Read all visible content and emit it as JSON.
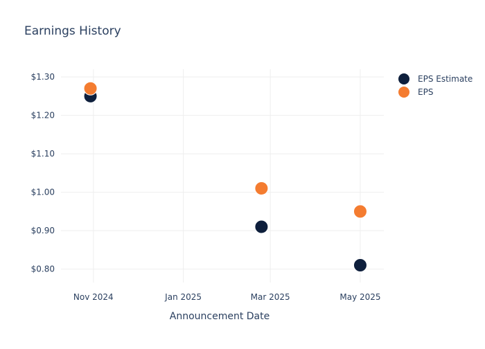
{
  "chart_data": {
    "type": "scatter",
    "title": "Earnings History",
    "xlabel": "Announcement Date",
    "ylabel": "",
    "x_ticks": [
      "Nov 2024",
      "Jan 2025",
      "Mar 2025",
      "May 2025"
    ],
    "x_tick_dates": [
      "2024-11-01",
      "2025-01-01",
      "2025-03-01",
      "2025-05-01"
    ],
    "xlim": [
      "2024-10-10",
      "2025-05-17"
    ],
    "y_ticks": [
      "$0.80",
      "$0.90",
      "$1.00",
      "$1.10",
      "$1.20",
      "$1.30"
    ],
    "y_tick_values": [
      0.8,
      0.9,
      1.0,
      1.1,
      1.2,
      1.3
    ],
    "ylim": [
      0.765,
      1.32
    ],
    "grid": true,
    "legend_position": "top-right",
    "series": [
      {
        "name": "EPS Estimate",
        "color": "#0e1f3c",
        "points": [
          {
            "x": "2024-10-30",
            "y": 1.25
          },
          {
            "x": "2025-02-23",
            "y": 0.91
          },
          {
            "x": "2025-05-01",
            "y": 0.81
          }
        ]
      },
      {
        "name": "EPS",
        "color": "#f47c30",
        "points": [
          {
            "x": "2024-10-30",
            "y": 1.27
          },
          {
            "x": "2025-02-23",
            "y": 1.01
          },
          {
            "x": "2025-05-01",
            "y": 0.95
          }
        ]
      }
    ]
  },
  "colors": {
    "text": "#2a3f5f",
    "grid": "#eeeeee"
  }
}
